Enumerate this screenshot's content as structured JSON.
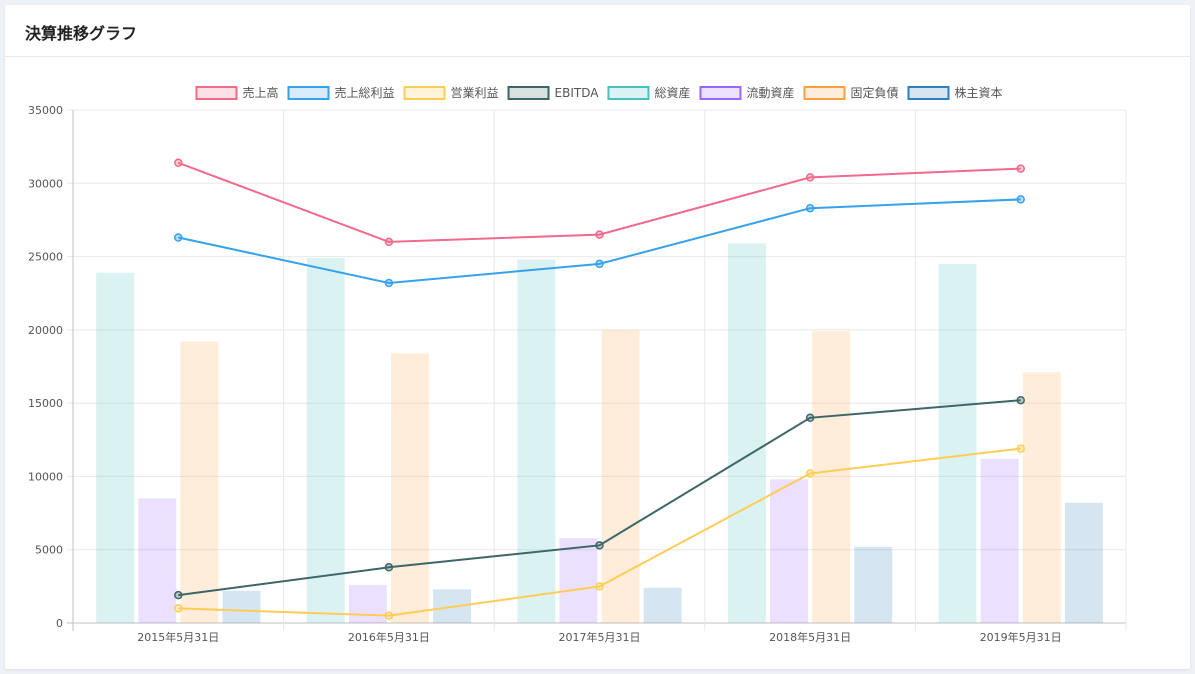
{
  "panel": {
    "title": "決算推移グラフ"
  },
  "chart_data": {
    "type": "bar",
    "categories": [
      "2015年5月31日",
      "2016年5月31日",
      "2017年5月31日",
      "2018年5月31日",
      "2019年5月31日"
    ],
    "ylim": [
      0,
      35000
    ],
    "yticks": [
      0,
      5000,
      10000,
      15000,
      20000,
      25000,
      30000,
      35000
    ],
    "grid": true,
    "legend_position": "top",
    "bar_series": [
      {
        "name": "総資産",
        "color": "#4bc0c0",
        "values": [
          23900,
          24900,
          24800,
          25900,
          24500
        ]
      },
      {
        "name": "流動資産",
        "color": "#9966ff",
        "values": [
          8500,
          2600,
          5800,
          9800,
          11200
        ]
      },
      {
        "name": "固定負債",
        "color": "#ff9f40",
        "values": [
          19200,
          18400,
          20000,
          19900,
          17100
        ]
      },
      {
        "name": "株主資本",
        "color": "#2d7fc0",
        "values": [
          2200,
          2300,
          2400,
          5200,
          8200
        ]
      }
    ],
    "line_series": [
      {
        "name": "売上高",
        "color": "#f06a8a",
        "values": [
          31400,
          26000,
          26500,
          30400,
          31000
        ]
      },
      {
        "name": "売上総利益",
        "color": "#36a2eb",
        "values": [
          26300,
          23200,
          24500,
          28300,
          28900
        ]
      },
      {
        "name": "営業利益",
        "color": "#ffcd56",
        "values": [
          1000,
          500,
          2500,
          10200,
          11900
        ]
      },
      {
        "name": "EBITDA",
        "color": "#3d6667",
        "values": [
          1900,
          3800,
          5300,
          14000,
          15200
        ]
      }
    ],
    "legend": [
      {
        "name": "売上高",
        "color": "#f06a8a",
        "fill": "#fde1e7"
      },
      {
        "name": "売上総利益",
        "color": "#36a2eb",
        "fill": "#d7ebfa"
      },
      {
        "name": "営業利益",
        "color": "#ffcd56",
        "fill": "#fff4d9"
      },
      {
        "name": "EBITDA",
        "color": "#3d6667",
        "fill": "#d8e0e0"
      },
      {
        "name": "総資産",
        "color": "#4bc0c0",
        "fill": "#dbf2f2"
      },
      {
        "name": "流動資産",
        "color": "#9966ff",
        "fill": "#ebe0ff"
      },
      {
        "name": "固定負債",
        "color": "#ff9f40",
        "fill": "#ffecd9"
      },
      {
        "name": "株主資本",
        "color": "#2d7fc0",
        "fill": "#d5e5f2"
      }
    ]
  }
}
